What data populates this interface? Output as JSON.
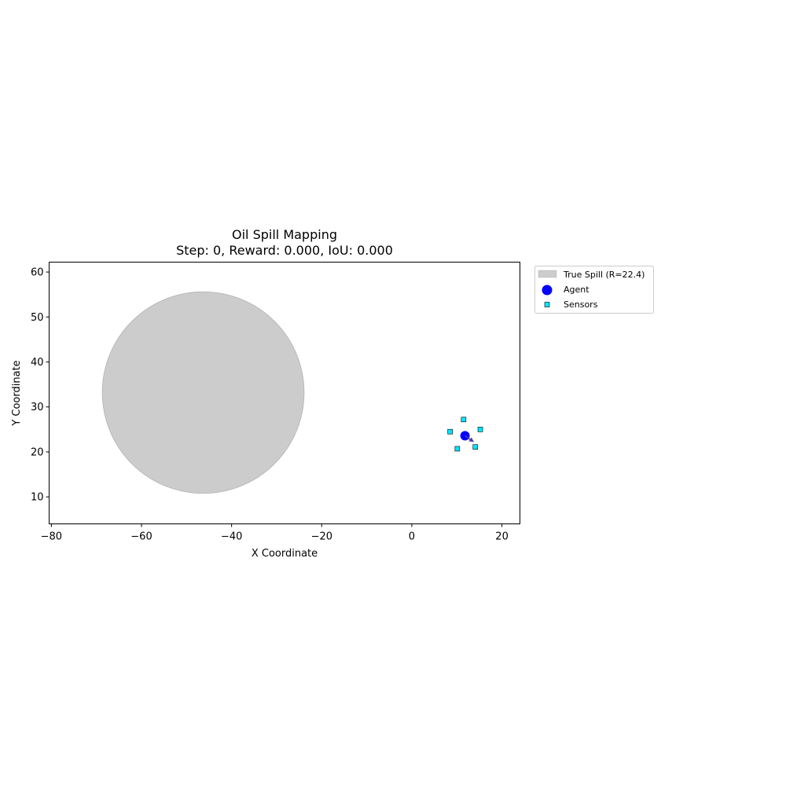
{
  "chart_data": {
    "type": "scatter",
    "title": "Oil Spill Mapping",
    "subtitle": "Step: 0, Reward: 0.000, IoU: 0.000",
    "xlabel": "X Coordinate",
    "ylabel": "Y Coordinate",
    "xlim": [
      -80.5,
      24
    ],
    "ylim": [
      4,
      62.2
    ],
    "x_ticks": [
      -80,
      -60,
      -40,
      -20,
      0,
      20
    ],
    "y_ticks": [
      10,
      20,
      30,
      40,
      50,
      60
    ],
    "grid": false,
    "legend_position": "outside-top-right",
    "spill": {
      "label": "True Spill (R=22.4)",
      "center": [
        -46.3,
        33.2
      ],
      "radius": 22.4,
      "color": "#cccccc"
    },
    "agent": {
      "label": "Agent",
      "position": [
        11.8,
        23.6
      ],
      "heading": [
        2.0,
        -1.4
      ],
      "color": "#0000ff"
    },
    "sensors": {
      "label": "Sensors",
      "color": "#00e5ff",
      "points": [
        [
          11.5,
          27.2
        ],
        [
          8.5,
          24.5
        ],
        [
          15.2,
          25.0
        ],
        [
          10.1,
          20.7
        ],
        [
          14.1,
          21.1
        ]
      ]
    }
  }
}
